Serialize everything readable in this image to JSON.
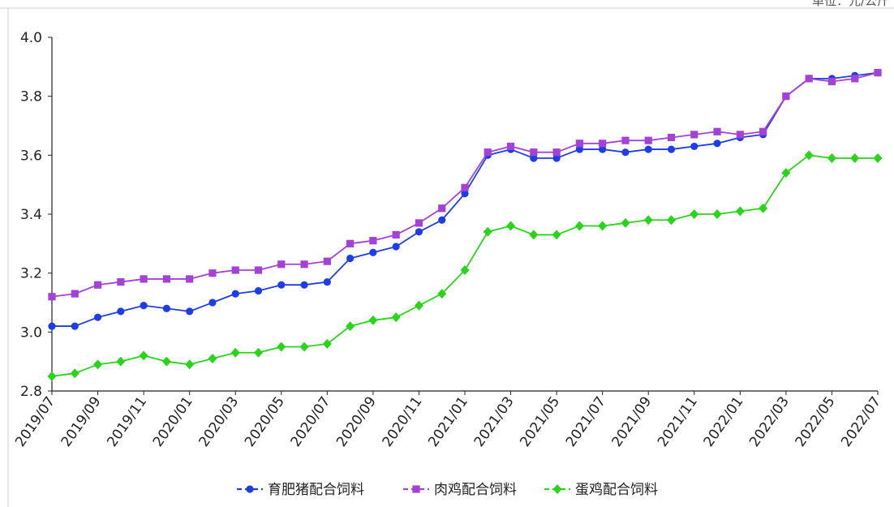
{
  "corner_label": "单位：元/公斤",
  "chart_data": {
    "type": "line",
    "title": "",
    "xlabel": "",
    "ylabel": "",
    "ylim": [
      2.8,
      4.0
    ],
    "yticks": [
      2.8,
      3.0,
      3.2,
      3.4,
      3.6,
      3.8,
      4.0
    ],
    "ytick_labels": [
      "2.8",
      "3.0",
      "3.2",
      "3.4",
      "3.6",
      "3.8",
      "4.0"
    ],
    "x": [
      "2019/07",
      "2019/08",
      "2019/09",
      "2019/10",
      "2019/11",
      "2019/12",
      "2020/01",
      "2020/02",
      "2020/03",
      "2020/04",
      "2020/05",
      "2020/06",
      "2020/07",
      "2020/08",
      "2020/09",
      "2020/10",
      "2020/11",
      "2020/12",
      "2021/01",
      "2021/02",
      "2021/03",
      "2021/04",
      "2021/05",
      "2021/06",
      "2021/07",
      "2021/08",
      "2021/09",
      "2021/10",
      "2021/11",
      "2021/12",
      "2022/01",
      "2022/02",
      "2022/03",
      "2022/04",
      "2022/05",
      "2022/06",
      "2022/07"
    ],
    "xtick_labels": [
      "2019/07",
      "2019/09",
      "2019/11",
      "2020/01",
      "2020/03",
      "2020/05",
      "2020/07",
      "2020/09",
      "2020/11",
      "2021/01",
      "2021/03",
      "2021/05",
      "2021/07",
      "2021/09",
      "2021/11",
      "2022/01",
      "2022/03",
      "2022/05",
      "2022/07"
    ],
    "legend_position": "bottom",
    "grid": false,
    "series": [
      {
        "name": "育肥猪配合饲料",
        "color": "#1f3de6",
        "marker": "circle",
        "values": [
          3.02,
          3.02,
          3.05,
          3.07,
          3.09,
          3.08,
          3.07,
          3.1,
          3.13,
          3.14,
          3.16,
          3.16,
          3.17,
          3.25,
          3.27,
          3.29,
          3.34,
          3.38,
          3.47,
          3.6,
          3.62,
          3.59,
          3.59,
          3.62,
          3.62,
          3.61,
          3.62,
          3.62,
          3.63,
          3.64,
          3.66,
          3.67,
          3.8,
          3.86,
          3.86,
          3.87,
          3.88
        ]
      },
      {
        "name": "肉鸡配合饲料",
        "color": "#a442d6",
        "marker": "square",
        "values": [
          3.12,
          3.13,
          3.16,
          3.17,
          3.18,
          3.18,
          3.18,
          3.2,
          3.21,
          3.21,
          3.23,
          3.23,
          3.24,
          3.3,
          3.31,
          3.33,
          3.37,
          3.42,
          3.49,
          3.61,
          3.63,
          3.61,
          3.61,
          3.64,
          3.64,
          3.65,
          3.65,
          3.66,
          3.67,
          3.68,
          3.67,
          3.68,
          3.8,
          3.86,
          3.85,
          3.86,
          3.88
        ]
      },
      {
        "name": "蛋鸡配合饲料",
        "color": "#29d41a",
        "marker": "diamond",
        "values": [
          2.85,
          2.86,
          2.89,
          2.9,
          2.92,
          2.9,
          2.89,
          2.91,
          2.93,
          2.93,
          2.95,
          2.95,
          2.96,
          3.02,
          3.04,
          3.05,
          3.09,
          3.13,
          3.21,
          3.34,
          3.36,
          3.33,
          3.33,
          3.36,
          3.36,
          3.37,
          3.38,
          3.38,
          3.4,
          3.4,
          3.41,
          3.42,
          3.54,
          3.6,
          3.59,
          3.59,
          3.59
        ]
      }
    ]
  }
}
